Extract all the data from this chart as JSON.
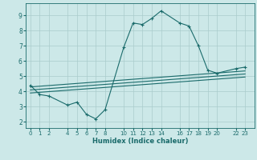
{
  "xlabel": "Humidex (Indice chaleur)",
  "bg_color": "#cce8e8",
  "grid_color": "#aacccc",
  "line_color": "#1a6b6b",
  "xticks": [
    0,
    1,
    2,
    4,
    5,
    6,
    7,
    8,
    10,
    11,
    12,
    13,
    14,
    16,
    17,
    18,
    19,
    20,
    22,
    23
  ],
  "yticks": [
    2,
    3,
    4,
    5,
    6,
    7,
    8,
    9
  ],
  "xlim": [
    -0.5,
    24.0
  ],
  "ylim": [
    1.6,
    9.8
  ],
  "line1_x": [
    0,
    1,
    2,
    4,
    5,
    6,
    7,
    8,
    10,
    11,
    12,
    13,
    14,
    16,
    17,
    18,
    19,
    20,
    22,
    23
  ],
  "line1_y": [
    4.4,
    3.8,
    3.7,
    3.1,
    3.3,
    2.5,
    2.2,
    2.8,
    6.9,
    8.5,
    8.4,
    8.8,
    9.3,
    8.5,
    8.3,
    7.0,
    5.4,
    5.2,
    5.5,
    5.6
  ],
  "line2_x": [
    0,
    23
  ],
  "line2_y": [
    4.3,
    5.35
  ],
  "line3_x": [
    0,
    23
  ],
  "line3_y": [
    4.1,
    5.15
  ],
  "line4_x": [
    0,
    23
  ],
  "line4_y": [
    3.9,
    4.95
  ]
}
